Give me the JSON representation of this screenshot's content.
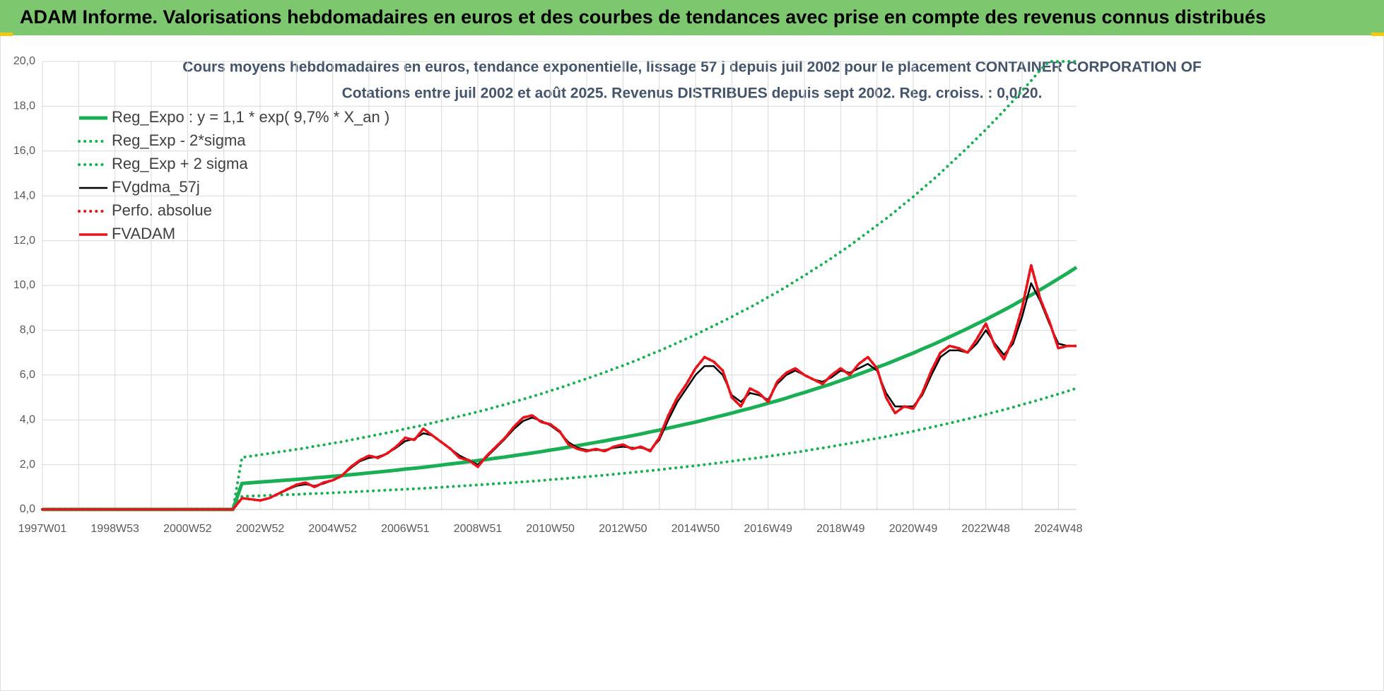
{
  "header": {
    "title": "ADAM Informe. Valorisations hebdomadaires en euros et des courbes de tendances avec prise en compte des revenus connus distribués"
  },
  "chart_data": {
    "type": "line",
    "title": "Cours moyens hebdomadaires en euros, tendance exponentielle, lissage 57 j depuis juil 2002 pour le placement CONTAINER CORPORATION OF",
    "subtitle": "Cotations entre juil 2002 et août 2025. Revenus DISTRIBUES depuis sept 2002. Reg. croiss. : 0,0/20.",
    "grid": true,
    "legend": "upper-left",
    "ylim": [
      0,
      20
    ],
    "yticks": [
      {
        "value": 0,
        "label": "0,0"
      },
      {
        "value": 2,
        "label": "2,0"
      },
      {
        "value": 4,
        "label": "4,0"
      },
      {
        "value": 6,
        "label": "6,0"
      },
      {
        "value": 8,
        "label": "8,0"
      },
      {
        "value": 10,
        "label": "10,0"
      },
      {
        "value": 12,
        "label": "12,0"
      },
      {
        "value": 14,
        "label": "14,0"
      },
      {
        "value": 16,
        "label": "16,0"
      },
      {
        "value": 18,
        "label": "18,0"
      },
      {
        "value": 20,
        "label": "20,0"
      }
    ],
    "categories": [
      "1997W01",
      null,
      null,
      null,
      null,
      null,
      null,
      null,
      "1998W53",
      null,
      null,
      null,
      null,
      null,
      null,
      null,
      "2000W52",
      null,
      null,
      null,
      null,
      null,
      null,
      null,
      "2002W52",
      null,
      null,
      null,
      null,
      null,
      null,
      null,
      "2004W52",
      null,
      null,
      null,
      null,
      null,
      null,
      null,
      "2006W51",
      null,
      null,
      null,
      null,
      null,
      null,
      null,
      "2008W51",
      null,
      null,
      null,
      null,
      null,
      null,
      null,
      "2010W50",
      null,
      null,
      null,
      null,
      null,
      null,
      null,
      "2012W50",
      null,
      null,
      null,
      null,
      null,
      null,
      null,
      "2014W50",
      null,
      null,
      null,
      null,
      null,
      null,
      null,
      "2016W49",
      null,
      null,
      null,
      null,
      null,
      null,
      null,
      "2018W49",
      null,
      null,
      null,
      null,
      null,
      null,
      null,
      "2020W49",
      null,
      null,
      null,
      null,
      null,
      null,
      null,
      "2022W48",
      null,
      null,
      null,
      null,
      null,
      null,
      null,
      "2024W48",
      null,
      null
    ],
    "series": [
      {
        "name": "Reg_Expo : y = 1,1 * exp( 9,7% *  X_an )",
        "color": "#1aaf54",
        "dash": "solid",
        "values": [
          0,
          0,
          0,
          0,
          0,
          0,
          0,
          0,
          0,
          0,
          0,
          0,
          0,
          0,
          0,
          0,
          0,
          0,
          0,
          0,
          0,
          0,
          1.16,
          1.19,
          1.22,
          1.25,
          1.28,
          1.31,
          1.34,
          1.37,
          1.41,
          1.44,
          1.48,
          1.51,
          1.55,
          1.59,
          1.63,
          1.67,
          1.71,
          1.75,
          1.8,
          1.84,
          1.88,
          1.93,
          1.98,
          2.03,
          2.08,
          2.13,
          2.18,
          2.23,
          2.29,
          2.34,
          2.4,
          2.46,
          2.52,
          2.58,
          2.65,
          2.71,
          2.78,
          2.85,
          2.92,
          2.99,
          3.06,
          3.14,
          3.21,
          3.29,
          3.37,
          3.46,
          3.54,
          3.63,
          3.72,
          3.81,
          3.9,
          4.0,
          4.1,
          4.2,
          4.3,
          4.41,
          4.51,
          4.62,
          4.74,
          4.85,
          4.97,
          5.1,
          5.22,
          5.35,
          5.48,
          5.61,
          5.75,
          5.89,
          6.04,
          6.19,
          6.34,
          6.49,
          6.65,
          6.82,
          6.98,
          7.16,
          7.33,
          7.51,
          7.7,
          7.89,
          8.08,
          8.28,
          8.48,
          8.69,
          8.9,
          9.12,
          9.35,
          9.57,
          9.81,
          10.05,
          10.3,
          10.55,
          10.81
        ]
      },
      {
        "name": "Reg_Exp - 2*sigma",
        "color": "#1aaf54",
        "dash": "dotted",
        "values": [
          0,
          0,
          0,
          0,
          0,
          0,
          0,
          0,
          0,
          0,
          0,
          0,
          0,
          0,
          0,
          0,
          0,
          0,
          0,
          0,
          0,
          0,
          0.58,
          0.6,
          0.61,
          0.63,
          0.64,
          0.66,
          0.67,
          0.69,
          0.71,
          0.72,
          0.74,
          0.76,
          0.78,
          0.8,
          0.82,
          0.84,
          0.86,
          0.88,
          0.9,
          0.92,
          0.94,
          0.97,
          0.99,
          1.02,
          1.04,
          1.07,
          1.09,
          1.12,
          1.15,
          1.17,
          1.2,
          1.23,
          1.26,
          1.29,
          1.33,
          1.36,
          1.39,
          1.43,
          1.46,
          1.5,
          1.53,
          1.57,
          1.61,
          1.65,
          1.69,
          1.73,
          1.77,
          1.82,
          1.86,
          1.91,
          1.95,
          2.0,
          2.05,
          2.1,
          2.15,
          2.21,
          2.26,
          2.31,
          2.37,
          2.43,
          2.49,
          2.55,
          2.61,
          2.68,
          2.74,
          2.81,
          2.88,
          2.95,
          3.02,
          3.1,
          3.17,
          3.25,
          3.33,
          3.41,
          3.49,
          3.58,
          3.67,
          3.76,
          3.85,
          3.95,
          4.04,
          4.14,
          4.24,
          4.35,
          4.45,
          4.56,
          4.68,
          4.79,
          4.91,
          5.03,
          5.15,
          5.28,
          5.41
        ]
      },
      {
        "name": "Reg_Exp + 2 sigma",
        "color": "#1aaf54",
        "dash": "dotted",
        "values": [
          0,
          0,
          0,
          0,
          0,
          0,
          0,
          0,
          0,
          0,
          0,
          0,
          0,
          0,
          0,
          0,
          0,
          0,
          0,
          0,
          0,
          0,
          2.32,
          2.38,
          2.44,
          2.5,
          2.56,
          2.62,
          2.68,
          2.74,
          2.82,
          2.88,
          2.96,
          3.02,
          3.1,
          3.18,
          3.26,
          3.34,
          3.42,
          3.5,
          3.6,
          3.68,
          3.76,
          3.86,
          3.96,
          4.06,
          4.16,
          4.26,
          4.36,
          4.46,
          4.58,
          4.68,
          4.8,
          4.92,
          5.04,
          5.16,
          5.3,
          5.42,
          5.56,
          5.7,
          5.84,
          5.98,
          6.12,
          6.28,
          6.42,
          6.58,
          6.74,
          6.92,
          7.08,
          7.26,
          7.44,
          7.62,
          7.8,
          8.0,
          8.2,
          8.4,
          8.6,
          8.82,
          9.02,
          9.24,
          9.48,
          9.7,
          9.94,
          10.2,
          10.44,
          10.7,
          10.96,
          11.22,
          11.5,
          11.78,
          12.08,
          12.38,
          12.68,
          12.98,
          13.3,
          13.64,
          13.96,
          14.32,
          14.66,
          15.02,
          15.4,
          15.78,
          16.16,
          16.56,
          16.96,
          17.38,
          17.8,
          18.24,
          18.7,
          19.14,
          19.62,
          20,
          20,
          20,
          20
        ]
      },
      {
        "name": "FVgdma_57j",
        "color": "#000000",
        "dash": "solid",
        "values": [
          0,
          0,
          0,
          0,
          0,
          0,
          0,
          0,
          0,
          0,
          0,
          0,
          0,
          0,
          0,
          0,
          0,
          0,
          0,
          0,
          0,
          0,
          0.5,
          0.45,
          0.42,
          0.5,
          0.68,
          0.88,
          1.05,
          1.12,
          1.05,
          1.15,
          1.3,
          1.5,
          1.85,
          2.15,
          2.3,
          2.35,
          2.5,
          2.75,
          3.05,
          3.15,
          3.4,
          3.3,
          3.0,
          2.7,
          2.4,
          2.2,
          2.0,
          2.35,
          2.75,
          3.15,
          3.6,
          3.95,
          4.1,
          3.95,
          3.75,
          3.45,
          3.0,
          2.75,
          2.65,
          2.65,
          2.65,
          2.75,
          2.8,
          2.75,
          2.75,
          2.65,
          3.1,
          4.0,
          4.8,
          5.4,
          6.0,
          6.4,
          6.4,
          6.0,
          5.1,
          4.8,
          5.2,
          5.1,
          4.9,
          5.6,
          6.0,
          6.2,
          6.0,
          5.8,
          5.7,
          5.9,
          6.2,
          6.1,
          6.3,
          6.5,
          6.2,
          5.2,
          4.6,
          4.6,
          4.6,
          5.1,
          6.0,
          6.8,
          7.1,
          7.1,
          7.0,
          7.4,
          8.0,
          7.4,
          6.9,
          7.4,
          8.6,
          10.1,
          9.3,
          8.3,
          7.4,
          7.3,
          7.3
        ]
      },
      {
        "name": "Perfo. absolue",
        "color": "#e8141b",
        "dash": "dotted",
        "values": [
          0,
          0,
          0,
          0,
          0,
          0,
          0,
          0,
          0,
          0,
          0,
          0,
          0,
          0,
          0,
          0,
          0,
          0,
          0,
          0,
          0,
          0,
          0.5,
          0.45,
          0.4,
          0.5,
          0.7,
          0.9,
          1.1,
          1.2,
          1.0,
          1.2,
          1.3,
          1.5,
          1.9,
          2.2,
          2.4,
          2.3,
          2.5,
          2.8,
          3.2,
          3.1,
          3.6,
          3.3,
          3.0,
          2.7,
          2.3,
          2.2,
          1.9,
          2.4,
          2.8,
          3.2,
          3.7,
          4.1,
          4.2,
          3.9,
          3.8,
          3.5,
          2.9,
          2.7,
          2.6,
          2.7,
          2.6,
          2.8,
          2.9,
          2.7,
          2.8,
          2.6,
          3.2,
          4.2,
          5.0,
          5.6,
          6.3,
          6.8,
          6.6,
          6.2,
          5.0,
          4.6,
          5.4,
          5.2,
          4.8,
          5.7,
          6.1,
          6.3,
          6.0,
          5.8,
          5.6,
          6.0,
          6.3,
          6.0,
          6.5,
          6.8,
          6.3,
          5.0,
          4.3,
          4.6,
          4.5,
          5.2,
          6.2,
          7.0,
          7.3,
          7.2,
          7.0,
          7.6,
          8.3,
          7.3,
          6.7,
          7.6,
          9.0,
          10.9,
          9.4,
          8.4,
          7.2,
          7.3,
          7.3
        ]
      },
      {
        "name": "FVADAM",
        "color": "#e8141b",
        "dash": "solid",
        "values": [
          0,
          0,
          0,
          0,
          0,
          0,
          0,
          0,
          0,
          0,
          0,
          0,
          0,
          0,
          0,
          0,
          0,
          0,
          0,
          0,
          0,
          0,
          0.5,
          0.45,
          0.4,
          0.5,
          0.7,
          0.9,
          1.1,
          1.2,
          1.0,
          1.2,
          1.3,
          1.5,
          1.9,
          2.2,
          2.4,
          2.3,
          2.5,
          2.8,
          3.2,
          3.1,
          3.6,
          3.3,
          3.0,
          2.7,
          2.3,
          2.2,
          1.9,
          2.4,
          2.8,
          3.2,
          3.7,
          4.1,
          4.2,
          3.9,
          3.8,
          3.5,
          2.9,
          2.7,
          2.6,
          2.7,
          2.6,
          2.8,
          2.9,
          2.7,
          2.8,
          2.6,
          3.2,
          4.2,
          5.0,
          5.6,
          6.3,
          6.8,
          6.6,
          6.2,
          5.0,
          4.6,
          5.4,
          5.2,
          4.8,
          5.7,
          6.1,
          6.3,
          6.0,
          5.8,
          5.6,
          6.0,
          6.3,
          6.0,
          6.5,
          6.8,
          6.3,
          5.0,
          4.3,
          4.6,
          4.5,
          5.2,
          6.2,
          7.0,
          7.3,
          7.2,
          7.0,
          7.6,
          8.3,
          7.3,
          6.7,
          7.6,
          9.0,
          10.9,
          9.4,
          8.4,
          7.2,
          7.3,
          7.3
        ]
      }
    ]
  }
}
